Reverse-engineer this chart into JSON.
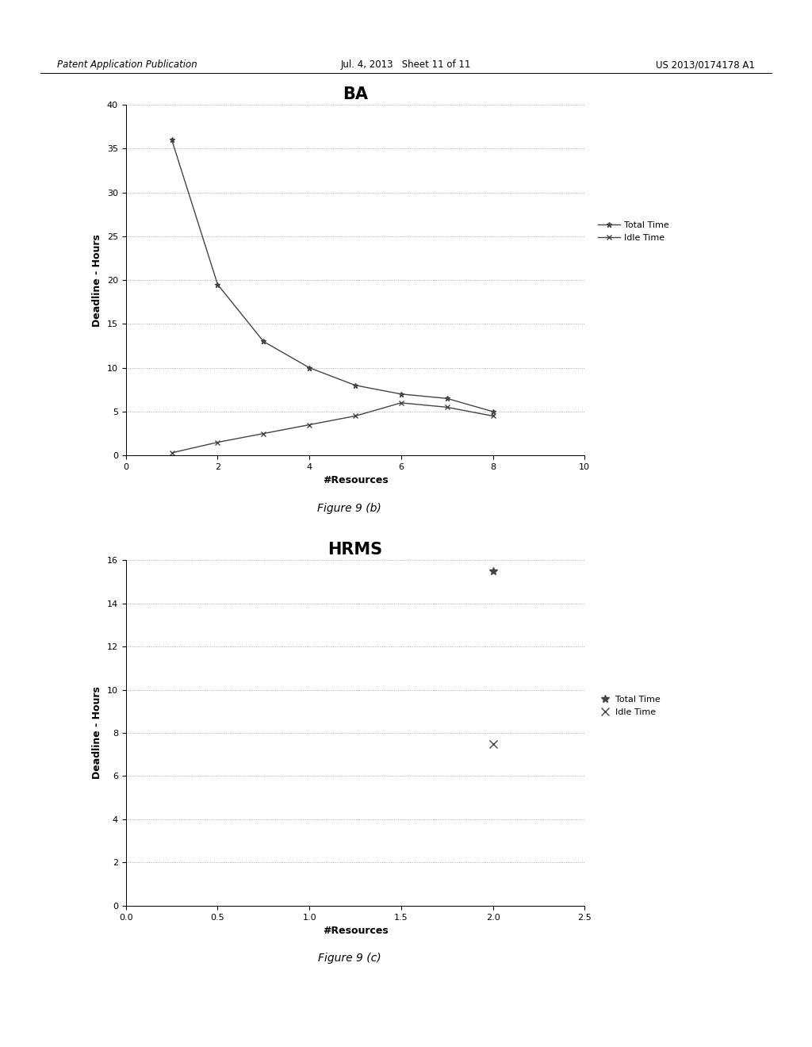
{
  "header_left": "Patent Application Publication",
  "header_mid": "Jul. 4, 2013   Sheet 11 of 11",
  "header_right": "US 2013/0174178 A1",
  "chart1": {
    "title": "BA",
    "title_fontsize": 15,
    "title_fontweight": "bold",
    "xlabel": "#Resources",
    "ylabel": "Deadline - Hours",
    "xlim": [
      0,
      10
    ],
    "ylim": [
      0,
      40
    ],
    "xticks": [
      0,
      2,
      4,
      6,
      8,
      10
    ],
    "yticks": [
      0,
      5,
      10,
      15,
      20,
      25,
      30,
      35,
      40
    ],
    "total_time_x": [
      1,
      2,
      3,
      4,
      5,
      6,
      7,
      8
    ],
    "total_time_y": [
      36,
      19.5,
      13,
      10,
      8,
      7,
      6.5,
      5
    ],
    "idle_time_x": [
      1,
      2,
      3,
      4,
      5,
      6,
      7,
      8
    ],
    "idle_time_y": [
      0.3,
      1.5,
      2.5,
      3.5,
      4.5,
      6.0,
      5.5,
      4.5
    ],
    "legend_total": "Total Time",
    "legend_idle": "Idle Time",
    "figure_caption": "Figure 9 (b)"
  },
  "chart2": {
    "title": "HRMS",
    "title_fontsize": 15,
    "title_fontweight": "bold",
    "xlabel": "#Resources",
    "ylabel": "Deadline - Hours",
    "xlim": [
      0,
      2.5
    ],
    "ylim": [
      0,
      16
    ],
    "xticks": [
      0,
      0.5,
      1,
      1.5,
      2,
      2.5
    ],
    "yticks": [
      0,
      2,
      4,
      6,
      8,
      10,
      12,
      14,
      16
    ],
    "total_time_x": [
      2
    ],
    "total_time_y": [
      15.5
    ],
    "idle_time_x": [
      2
    ],
    "idle_time_y": [
      7.5
    ],
    "legend_total": "Total Time",
    "legend_idle": "Idle Time",
    "figure_caption": "Figure 9 (c)"
  },
  "bg_color": "#ffffff",
  "line_color": "#444444",
  "grid_color": "#999999",
  "marker_color": "#444444"
}
